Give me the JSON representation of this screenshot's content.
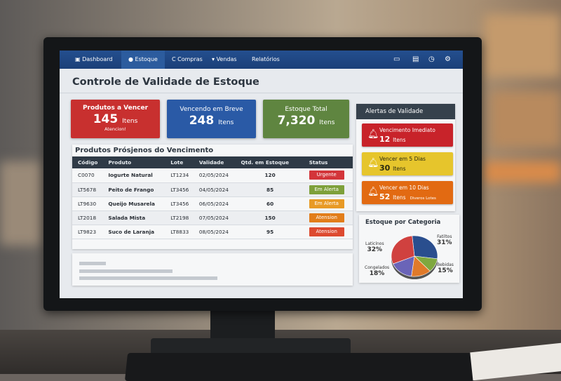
{
  "nav": {
    "items": [
      {
        "label": "Dashboard",
        "icon": "dashboard-icon"
      },
      {
        "label": "Estoque",
        "icon": "box-icon"
      },
      {
        "label": "C Compras"
      },
      {
        "label": "Vendas",
        "icon": "chevron-down-icon"
      },
      {
        "label": "Relatórios"
      }
    ],
    "active": "Estoque",
    "right_icons": [
      "battery-icon",
      "grid-icon",
      "clock-icon",
      "gear-icon"
    ]
  },
  "page_title": "Controle de Validade de Estoque",
  "cards": [
    {
      "label": "Produtos a Vencer",
      "value": "145",
      "unit": "Itens",
      "note": "Atencion!",
      "color": "#c8302f"
    },
    {
      "label": "Vencendo em Breve",
      "value": "248",
      "unit": "Itens",
      "color": "#2a5aa6"
    },
    {
      "label": "Estoque Total",
      "value": "7,320",
      "unit": "Itens",
      "color": "#5f8540"
    }
  ],
  "table": {
    "title": "Produtos Prósjenos do Vencimento",
    "columns": [
      "Código",
      "Produto",
      "Lote",
      "Validade",
      "Qtd. em Estoque",
      "Status"
    ],
    "rows": [
      [
        "C0070",
        "Iogurte Natural",
        "LT1234",
        "02/05/2024",
        "120",
        "Urgente"
      ],
      [
        "LT5678",
        "Peito de Frango",
        "LT3456",
        "04/05/2024",
        "85",
        "Em Alerta"
      ],
      [
        "LT9630",
        "Queijo Musarela",
        "LT3456",
        "06/05/2024",
        "60",
        "Em Alerta"
      ],
      [
        "LT2018",
        "Salada Mista",
        "LT2198",
        "07/05/2024",
        "150",
        "Atension"
      ],
      [
        "LT9823",
        "Suco de Laranja",
        "LT8833",
        "08/05/2024",
        "95",
        "Atension"
      ]
    ],
    "status_colors": [
      "#d3353a",
      "#7ea03a",
      "#e89a25",
      "#e27d1a",
      "#dd4a30"
    ]
  },
  "alerts": {
    "title": "Alertas de Validade",
    "items": [
      {
        "label": "Vencimento Imediato",
        "value": "12",
        "unit": "Itens",
        "color": "#c8232a"
      },
      {
        "label": "Vencer em 5 Dias",
        "value": "30",
        "unit": "Itens",
        "color": "#e6c52c"
      },
      {
        "label": "Vencer em 10 Dias",
        "value": "52",
        "unit": "Itens",
        "extra": "Diveros Lotes",
        "color": "#e26a12"
      }
    ]
  },
  "chart_data": {
    "type": "pie",
    "title": "Estoque por Categoria",
    "slices": [
      {
        "name": "Laticínos",
        "value": 32,
        "color": "#d0413f"
      },
      {
        "name": "Fatiltos",
        "value": 31,
        "color": "#2a4e8e"
      },
      {
        "name": "",
        "value": 12,
        "color": "#7fa83e"
      },
      {
        "name": "Bebidas",
        "value": 15,
        "color": "#e07a2a"
      },
      {
        "name": "Congelados",
        "value": 18,
        "color": "#6a64b8"
      }
    ]
  }
}
